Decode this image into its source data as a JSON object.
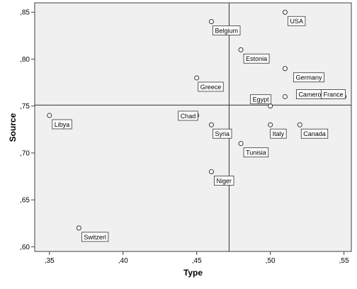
{
  "chart_data": {
    "type": "scatter",
    "title": "",
    "xlabel": "Type",
    "ylabel": "Source",
    "xlim": [
      0.34,
      0.555
    ],
    "ylim": [
      0.595,
      0.86
    ],
    "x_ticks": [
      {
        "value": 0.35,
        "label": ",35"
      },
      {
        "value": 0.4,
        "label": ",40"
      },
      {
        "value": 0.45,
        "label": ",45"
      },
      {
        "value": 0.5,
        "label": ",50"
      },
      {
        "value": 0.55,
        "label": ",55"
      }
    ],
    "y_ticks": [
      {
        "value": 0.6,
        "label": ",60"
      },
      {
        "value": 0.65,
        "label": ",65"
      },
      {
        "value": 0.7,
        "label": ",70"
      },
      {
        "value": 0.75,
        "label": ",75"
      },
      {
        "value": 0.8,
        "label": ",80"
      },
      {
        "value": 0.85,
        "label": ",85"
      }
    ],
    "reference_lines": {
      "x": 0.472,
      "y": 0.751
    },
    "grid": false,
    "points": [
      {
        "label": "USA",
        "x": 0.51,
        "y": 0.85
      },
      {
        "label": "Belgium",
        "x": 0.46,
        "y": 0.84
      },
      {
        "label": "Estonia",
        "x": 0.48,
        "y": 0.81
      },
      {
        "label": "Germany",
        "x": 0.51,
        "y": 0.79
      },
      {
        "label": "Greece",
        "x": 0.45,
        "y": 0.78
      },
      {
        "label": "Egypt",
        "x": 0.5,
        "y": 0.75
      },
      {
        "label": "Cameroon",
        "x": 0.51,
        "y": 0.76
      },
      {
        "label": "France",
        "x": 0.55,
        "y": 0.76
      },
      {
        "label": "Chad",
        "x": 0.45,
        "y": 0.74
      },
      {
        "label": "Libya",
        "x": 0.35,
        "y": 0.74
      },
      {
        "label": "Italy",
        "x": 0.5,
        "y": 0.73
      },
      {
        "label": "Syria",
        "x": 0.46,
        "y": 0.73
      },
      {
        "label": "Canada",
        "x": 0.52,
        "y": 0.73
      },
      {
        "label": "Tunisia",
        "x": 0.48,
        "y": 0.71
      },
      {
        "label": "Niger",
        "x": 0.46,
        "y": 0.68
      },
      {
        "label": "Switzerl",
        "x": 0.37,
        "y": 0.62
      }
    ],
    "colors": {
      "plot_background": "#f0f0f0",
      "axis": "#404040",
      "marker_stroke": "#333333",
      "marker_fill": "#ffffff",
      "reference_line": "#333333",
      "label_box": "#ffffff"
    }
  }
}
